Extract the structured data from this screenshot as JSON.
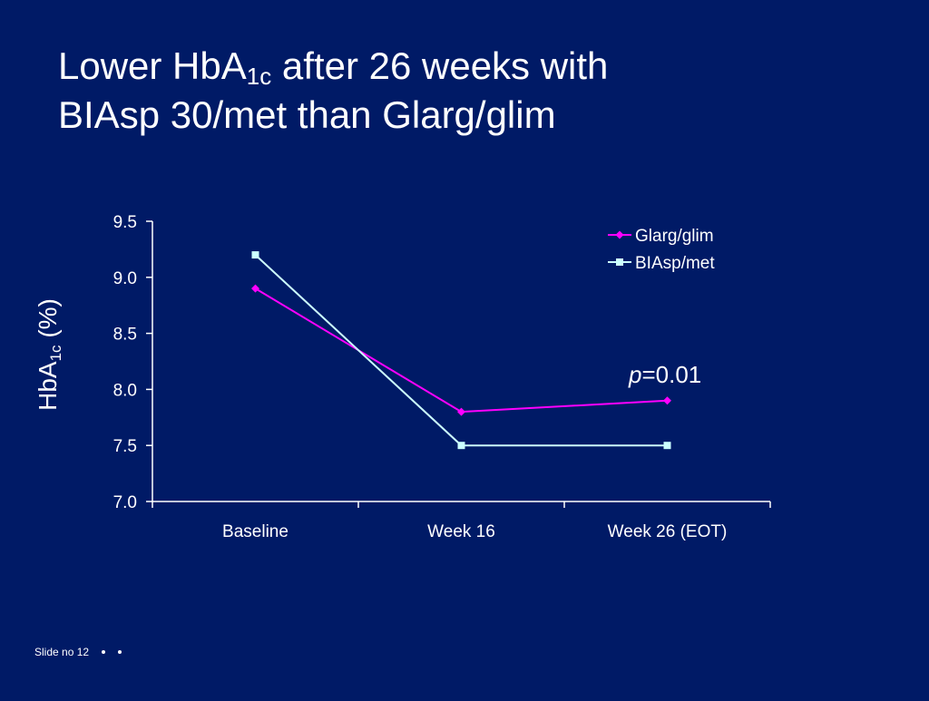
{
  "slide": {
    "title_part1": "Lower HbA",
    "title_sub": "1c",
    "title_part2": " after 26 weeks with",
    "title_line2": "BIAsp 30/met than Glarg/glim",
    "footer_text": "Slide no 12",
    "bg_color": "#001a66"
  },
  "annotation": {
    "p_italic": "p",
    "p_rest": "=0.01"
  },
  "ylabel": {
    "main": "HbA",
    "sub": "1c",
    "rest": " (%)"
  },
  "chart_data": {
    "type": "line",
    "categories": [
      "Baseline",
      "Week 16",
      "Week 26 (EOT)"
    ],
    "ylim": [
      7.0,
      9.5
    ],
    "yticks": [
      "7.0",
      "7.5",
      "8.0",
      "8.5",
      "9.0",
      "9.5"
    ],
    "legend_position": "top-right",
    "grid": false,
    "series": [
      {
        "name": "Glarg/glim",
        "values": [
          8.9,
          7.8,
          7.9
        ],
        "color": "#ff00ff",
        "marker": "diamond"
      },
      {
        "name": "BIAsp/met",
        "values": [
          9.2,
          7.5,
          7.5
        ],
        "color": "#ccffff",
        "marker": "square"
      }
    ]
  }
}
